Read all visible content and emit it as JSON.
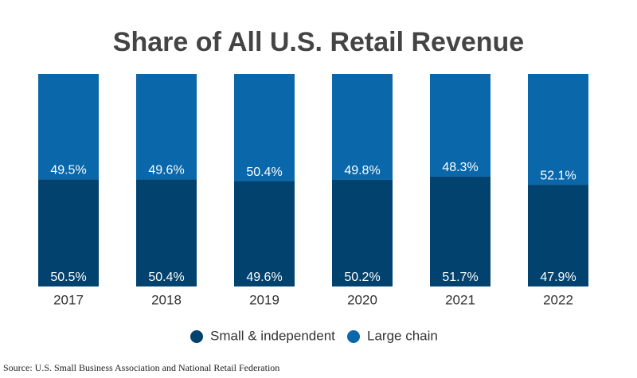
{
  "chart_data": {
    "type": "stacked_bar",
    "title": "Share of All U.S. Retail Revenue",
    "categories": [
      "2017",
      "2018",
      "2019",
      "2020",
      "2021",
      "2022"
    ],
    "series": [
      {
        "name": "Small & independent",
        "color": "#01426e",
        "values": [
          50.5,
          50.4,
          49.6,
          50.2,
          51.7,
          47.9
        ],
        "value_labels": [
          "50.5%",
          "50.4%",
          "49.6%",
          "50.2%",
          "51.7%",
          "47.9%"
        ]
      },
      {
        "name": "Large chain",
        "color": "#0a67aa",
        "values": [
          49.5,
          49.6,
          50.4,
          49.8,
          48.3,
          52.1
        ],
        "value_labels": [
          "49.5%",
          "49.6%",
          "50.4%",
          "49.8%",
          "48.3%",
          "52.1%"
        ]
      }
    ],
    "ylim": [
      0,
      100
    ],
    "source": "Source: U.S. Small Business Association and National Retail Federation"
  }
}
